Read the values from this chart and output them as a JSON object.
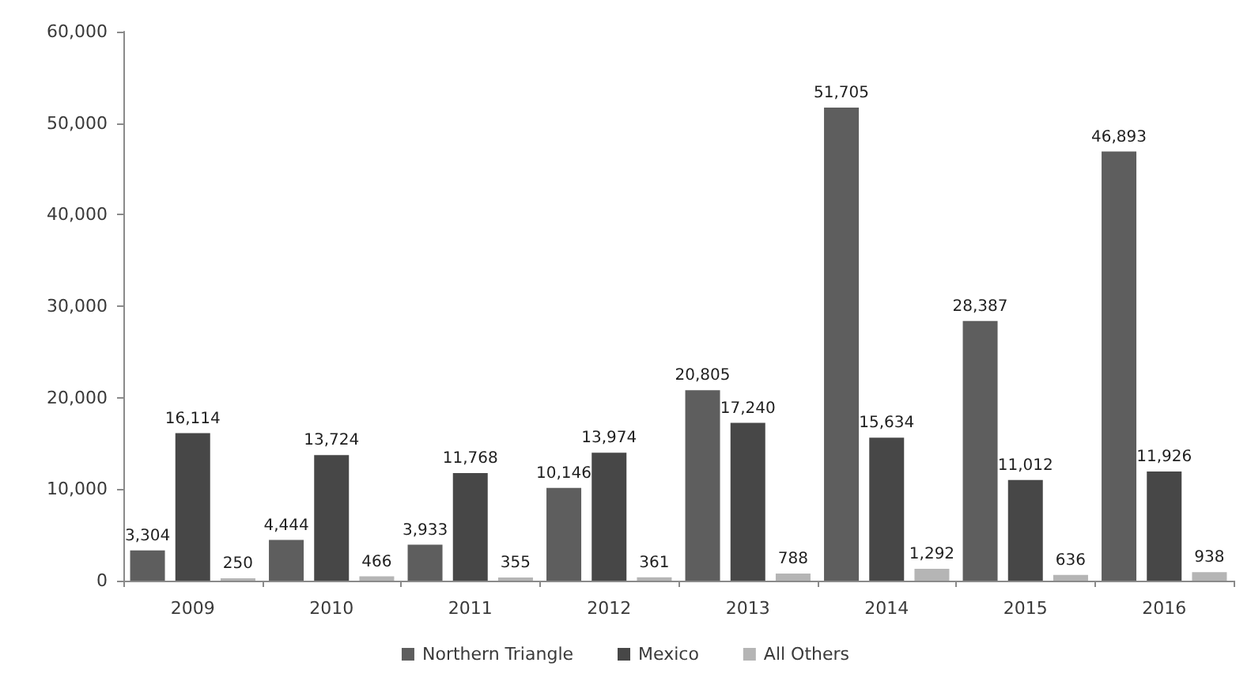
{
  "chart_data": {
    "type": "bar",
    "categories": [
      "2009",
      "2010",
      "2011",
      "2012",
      "2013",
      "2014",
      "2015",
      "2016"
    ],
    "series": [
      {
        "name": "Northern Triangle",
        "color": "#5e5e5e",
        "values": [
          3304,
          4444,
          3933,
          10146,
          20805,
          51705,
          28387,
          46893
        ],
        "value_labels": [
          "3,304",
          "4,444",
          "3,933",
          "10,146",
          "20,805",
          "51,705",
          "28,387",
          "46,893"
        ]
      },
      {
        "name": "Mexico",
        "color": "#474747",
        "values": [
          16114,
          13724,
          11768,
          13974,
          17240,
          15634,
          11012,
          11926
        ],
        "value_labels": [
          "16,114",
          "13,724",
          "11,768",
          "13,974",
          "17,240",
          "15,634",
          "11,012",
          "11,926"
        ]
      },
      {
        "name": "All Others",
        "color": "#b5b5b5",
        "values": [
          250,
          466,
          355,
          361,
          788,
          1292,
          636,
          938
        ],
        "value_labels": [
          "250",
          "466",
          "355",
          "361",
          "788",
          "1,292",
          "636",
          "938"
        ]
      }
    ],
    "ylim": [
      0,
      60000
    ],
    "yticks": [
      0,
      {
        "value": 10000,
        "label": "10,000"
      },
      {
        "value": 20000,
        "label": "20,000"
      },
      {
        "value": 30000,
        "label": "30,000"
      },
      {
        "value": 40000,
        "label": "40,000"
      },
      {
        "value": 50000,
        "label": "50,000"
      },
      {
        "value": 60000,
        "label": "60,000"
      }
    ],
    "grid": false,
    "legend": "bottom"
  }
}
